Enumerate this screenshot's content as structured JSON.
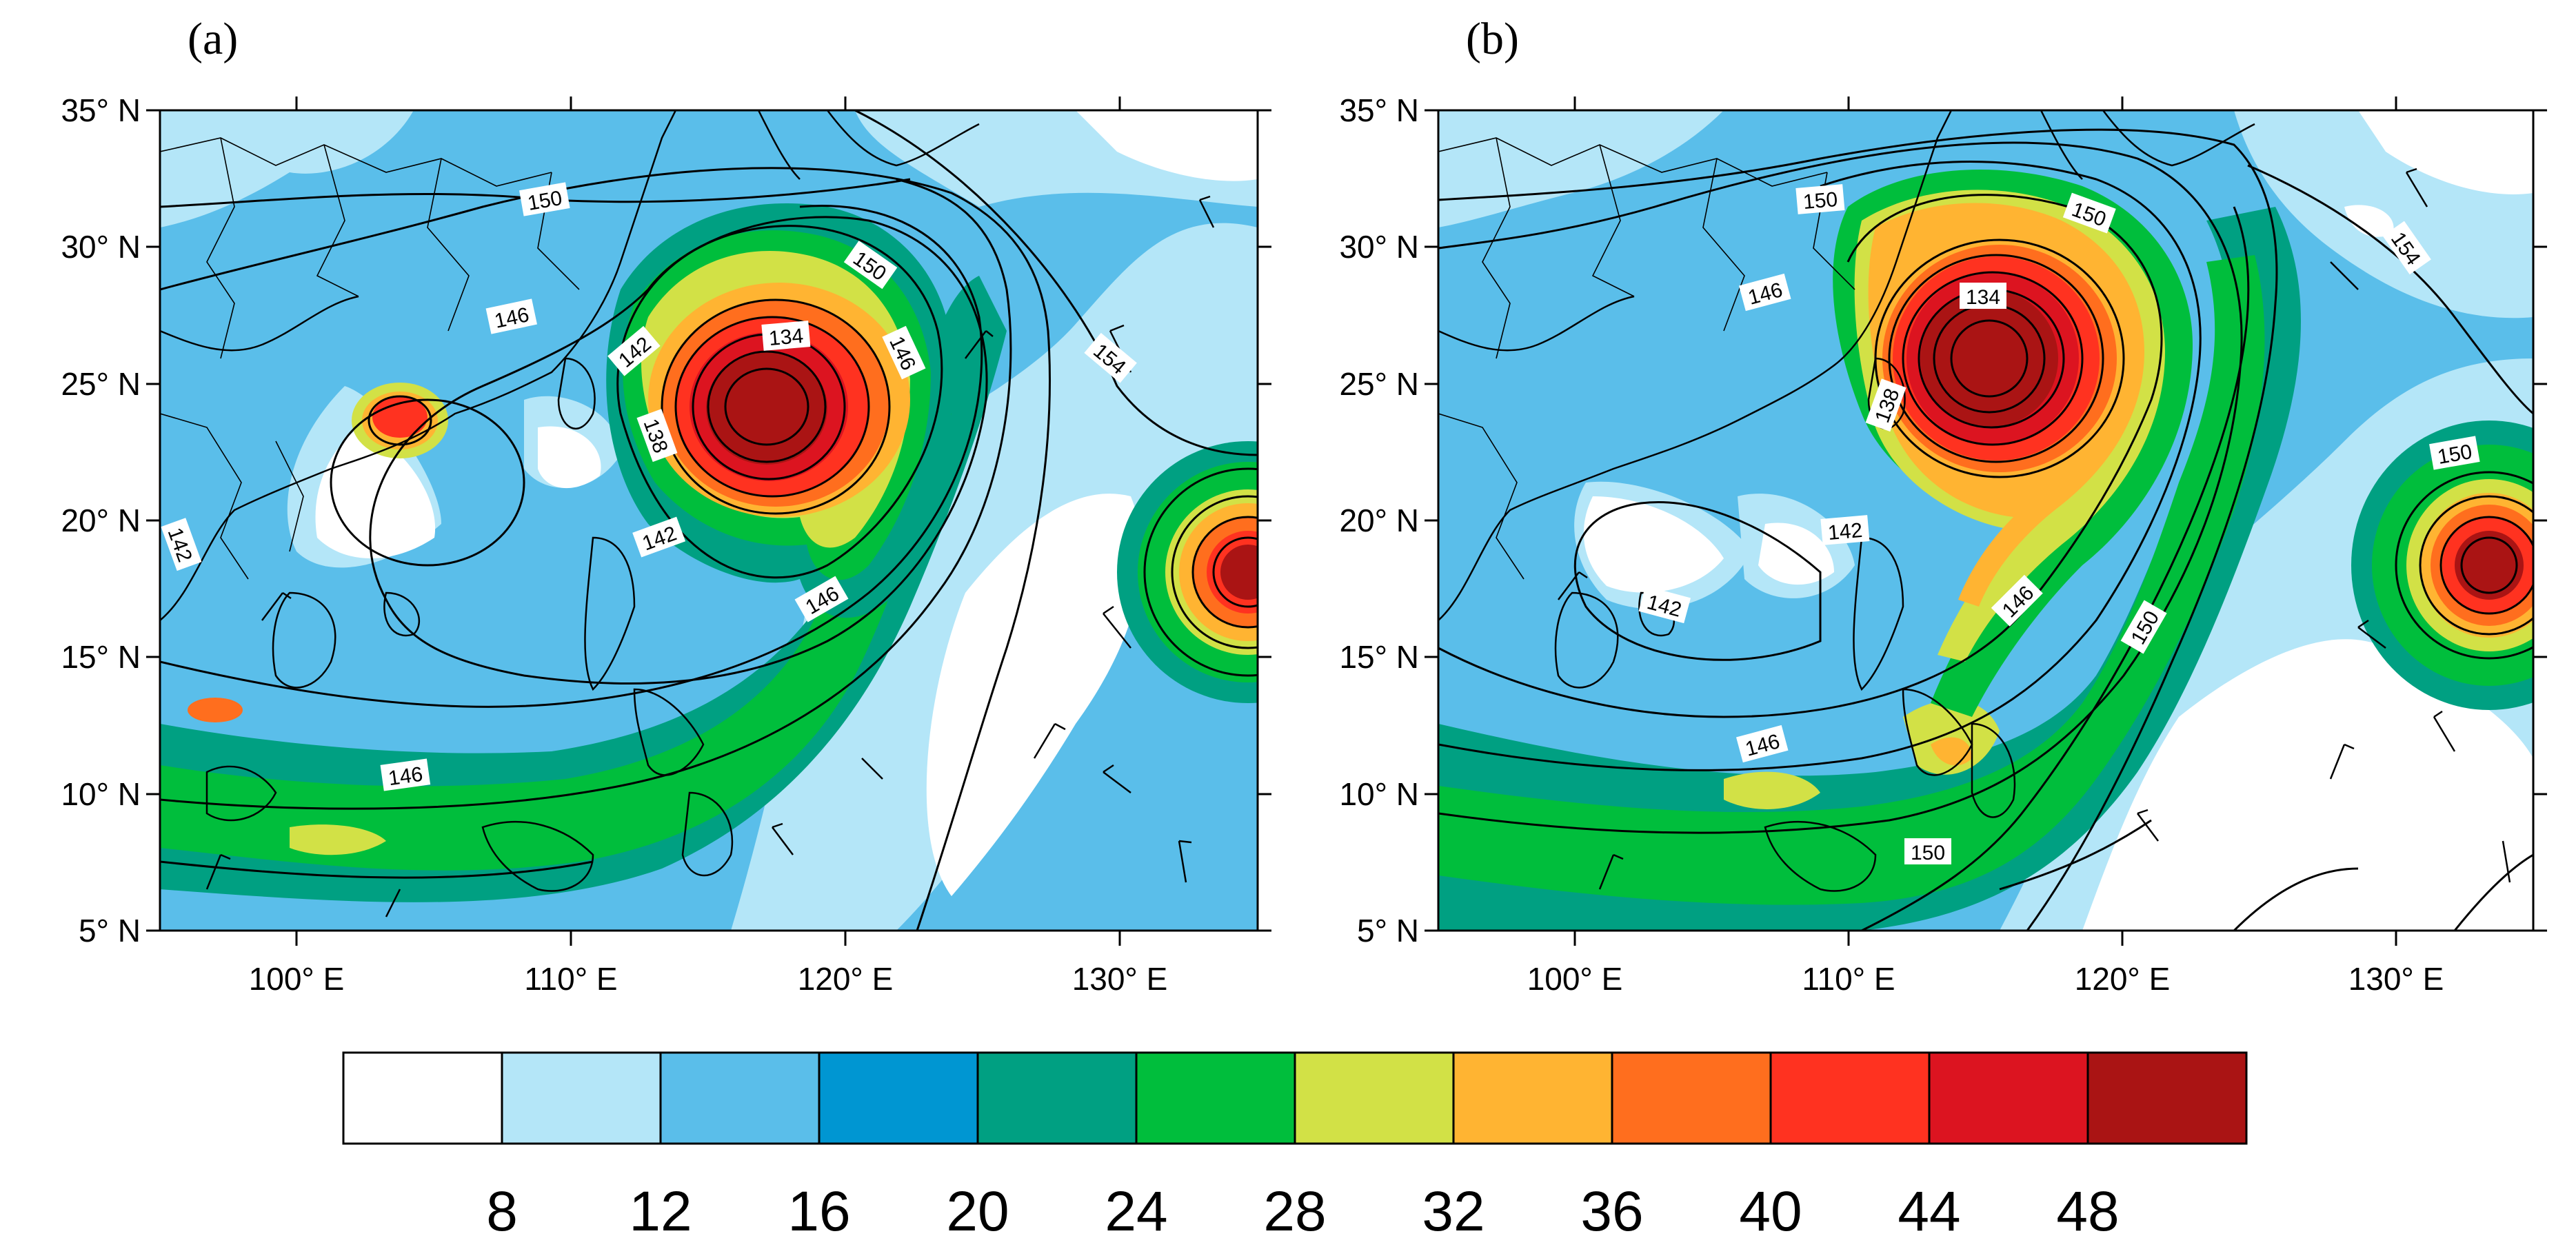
{
  "panels": [
    {
      "label": "(a)",
      "lat_labels": [
        "35° N",
        "30° N",
        "25° N",
        "20° N",
        "15° N",
        "10° N",
        "5° N"
      ],
      "lon_labels": [
        "100° E",
        "110° E",
        "120° E",
        "130° E"
      ],
      "contour_labels": [
        "150",
        "146",
        "142",
        "134",
        "146",
        "138",
        "142",
        "142",
        "146",
        "150",
        "154",
        "146"
      ]
    },
    {
      "label": "(b)",
      "lat_labels": [
        "35° N",
        "30° N",
        "25° N",
        "20° N",
        "15° N",
        "10° N",
        "5° N"
      ],
      "lon_labels": [
        "100° E",
        "110° E",
        "120° E",
        "130° E"
      ],
      "contour_labels": [
        "150",
        "150",
        "154",
        "146",
        "134",
        "138",
        "142",
        "142",
        "146",
        "150",
        "146",
        "150",
        "150"
      ]
    }
  ],
  "colorbar": {
    "colors": [
      "#ffffff",
      "#b4e6f8",
      "#5abeea",
      "#0096d2",
      "#00a082",
      "#00be3c",
      "#d2e146",
      "#ffb432",
      "#ff6e1e",
      "#ff3220",
      "#dc1420",
      "#aa1414"
    ],
    "tick_labels": [
      "8",
      "12",
      "16",
      "20",
      "24",
      "28",
      "32",
      "36",
      "40",
      "44",
      "48"
    ]
  }
}
